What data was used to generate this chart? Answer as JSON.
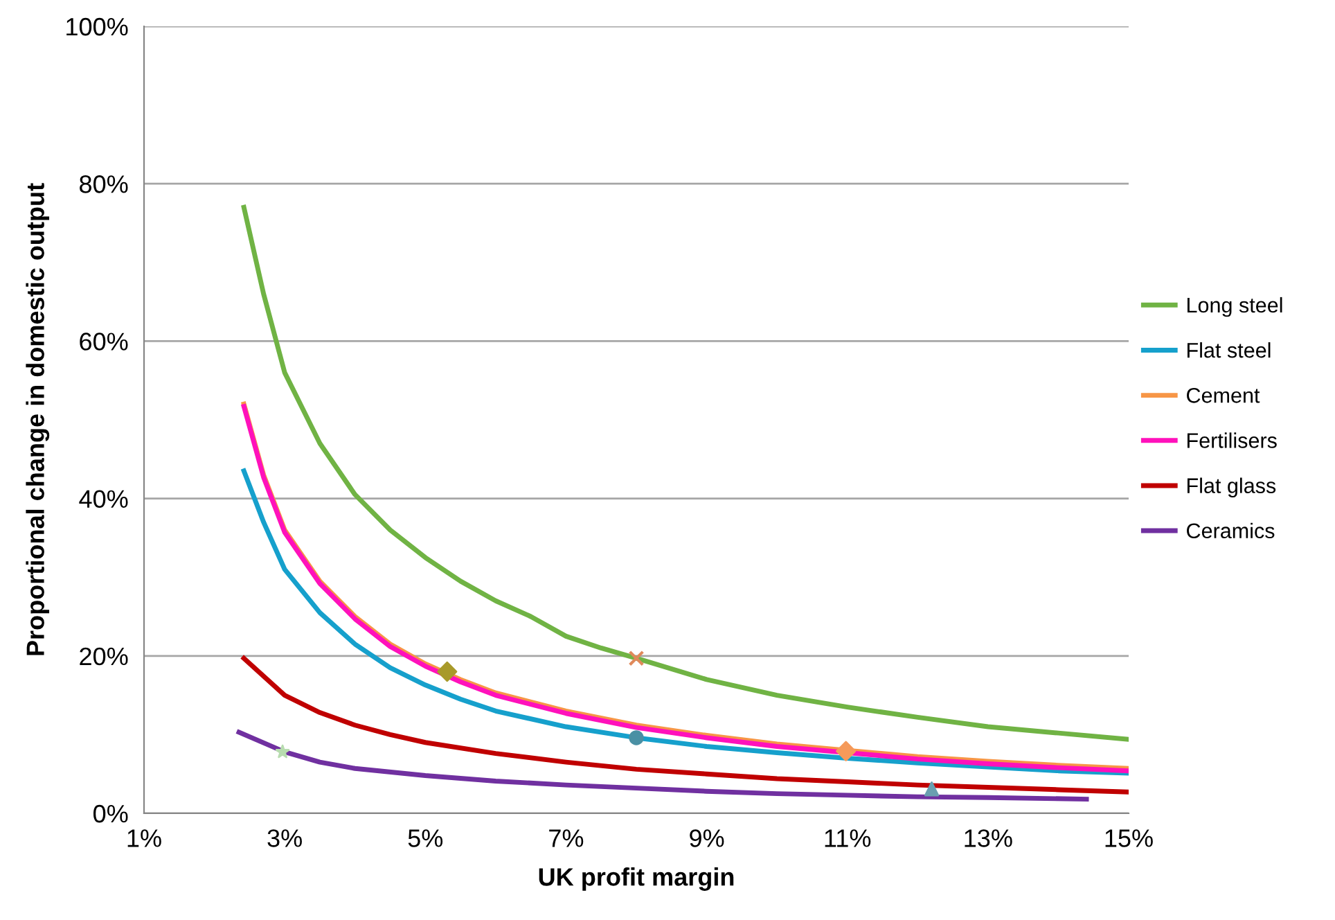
{
  "chart_data": {
    "type": "line",
    "xlabel": "UK profit margin",
    "ylabel": "Proportional change in domestic output",
    "xlim": [
      1,
      15
    ],
    "xticks": [
      {
        "value": 1,
        "label": "1%"
      },
      {
        "value": 3,
        "label": "3%"
      },
      {
        "value": 5,
        "label": "5%"
      },
      {
        "value": 7,
        "label": "7%"
      },
      {
        "value": 9,
        "label": "9%"
      },
      {
        "value": 11,
        "label": "11%"
      },
      {
        "value": 13,
        "label": "13%"
      },
      {
        "value": 15,
        "label": "15%"
      }
    ],
    "ylim": [
      0,
      100
    ],
    "yticks": [
      {
        "value": 0,
        "label": "0%"
      },
      {
        "value": 20,
        "label": "20%"
      },
      {
        "value": 40,
        "label": "40%"
      },
      {
        "value": 60,
        "label": "60%"
      },
      {
        "value": 80,
        "label": "80%"
      },
      {
        "value": 100,
        "label": "100%"
      }
    ],
    "grid": "y",
    "legend": "right",
    "marker": "none",
    "line_style": "solid",
    "series": [
      {
        "name": "Long steel",
        "color": "#70b344",
        "x": [
          2.42,
          2.7,
          3,
          3.5,
          4,
          4.5,
          5,
          5.5,
          6,
          6.5,
          7,
          7.5,
          8,
          9,
          10,
          11,
          12,
          13,
          14,
          15
        ],
        "values": [
          77,
          66,
          56,
          47,
          40.5,
          36,
          32.5,
          29.5,
          27,
          25,
          22.5,
          21,
          19.7,
          17,
          15,
          13.5,
          12.2,
          11,
          10.2,
          9.4
        ]
      },
      {
        "name": "Flat steel",
        "color": "#16a0cc",
        "x": [
          2.42,
          2.7,
          3,
          3.5,
          4,
          4.5,
          5,
          5.5,
          6,
          7,
          8,
          9,
          10,
          11,
          12,
          13,
          14,
          15
        ],
        "values": [
          43.5,
          37,
          31,
          25.5,
          21.5,
          18.5,
          16.3,
          14.5,
          13,
          11,
          9.6,
          8.5,
          7.7,
          7,
          6.4,
          5.9,
          5.4,
          5.1
        ]
      },
      {
        "name": "Cement",
        "color": "#f79646",
        "x": [
          2.42,
          2.7,
          3,
          3.5,
          4,
          4.5,
          5,
          5.5,
          6,
          7,
          8,
          9,
          10,
          11,
          12,
          13,
          14,
          15
        ],
        "values": [
          52,
          43,
          36,
          29.5,
          25,
          21.5,
          19,
          17,
          15.3,
          13,
          11.2,
          9.9,
          8.8,
          8,
          7.2,
          6.6,
          6.1,
          5.7
        ]
      },
      {
        "name": "Fertilisers",
        "color": "#ff11bb",
        "x": [
          2.42,
          2.7,
          3,
          3.5,
          4,
          4.5,
          5,
          5.5,
          6,
          7,
          8,
          9,
          10,
          11,
          12,
          13,
          14,
          15
        ],
        "values": [
          51.7,
          42.7,
          35.7,
          29.2,
          24.7,
          21.2,
          18.7,
          16.7,
          15,
          12.7,
          10.9,
          9.6,
          8.5,
          7.7,
          6.9,
          6.3,
          5.8,
          5.4
        ]
      },
      {
        "name": "Flat glass",
        "color": "#c00000",
        "x": [
          2.42,
          3,
          3.5,
          4,
          4.5,
          5,
          6,
          7,
          8,
          9,
          10,
          11,
          12,
          13,
          14,
          15
        ],
        "values": [
          19.7,
          15,
          12.8,
          11.2,
          10,
          9,
          7.6,
          6.5,
          5.6,
          5,
          4.4,
          4,
          3.6,
          3.3,
          3,
          2.7
        ]
      },
      {
        "name": "Ceramics",
        "color": "#7030a0",
        "x": [
          2.35,
          3,
          3.5,
          4,
          5,
          6,
          7,
          8,
          9,
          10,
          11,
          12,
          13,
          14.4
        ],
        "values": [
          10.3,
          7.8,
          6.5,
          5.7,
          4.8,
          4.1,
          3.6,
          3.2,
          2.8,
          2.5,
          2.3,
          2.1,
          2,
          1.8
        ]
      },
      {
        "type": "scatter",
        "marker": "diamond",
        "color": "#a89a2a",
        "x": [
          5.31
        ],
        "values": [
          18
        ]
      },
      {
        "type": "scatter",
        "marker": "cross",
        "color": "#e0895a",
        "x": [
          8
        ],
        "values": [
          19.7
        ]
      },
      {
        "type": "scatter",
        "marker": "circle",
        "color": "#4a90a4",
        "x": [
          8
        ],
        "values": [
          9.6
        ]
      },
      {
        "type": "scatter",
        "marker": "star",
        "color": "#b8dcb0",
        "x": [
          2.97
        ],
        "values": [
          7.8
        ]
      },
      {
        "type": "scatter",
        "marker": "diamond",
        "color": "#f59a5a",
        "x": [
          10.98
        ],
        "values": [
          7.9
        ]
      },
      {
        "type": "scatter",
        "marker": "triangle",
        "color": "#6a9fb0",
        "x": [
          12.2
        ],
        "values": [
          3.1
        ]
      }
    ]
  }
}
